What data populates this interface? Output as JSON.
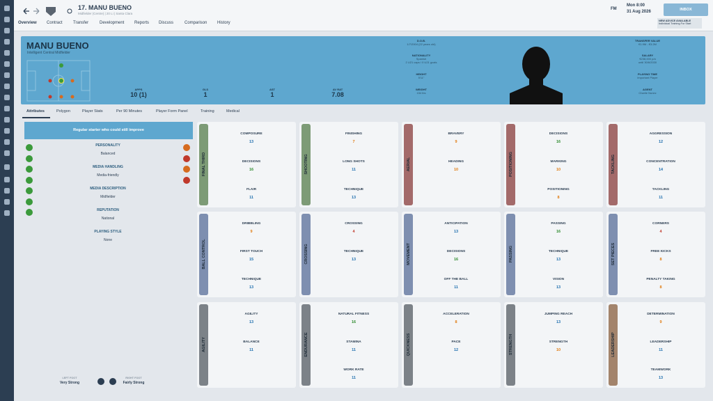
{
  "header": {
    "player": "17. MANU BUENO",
    "subtitle": "Midfielder (Centre) | 20 Li | Santa Clara",
    "day": "Mon 8:00",
    "date": "31 Aug 2026",
    "logo": "FM",
    "inbox": "INBOX",
    "advice_title": "NEW ADVICE AVAILABLE",
    "advice_text": "Individual Training For Start"
  },
  "nav": [
    "Overview",
    "Contract",
    "Transfer",
    "Development",
    "Reports",
    "Discuss",
    "Comparison",
    "History"
  ],
  "banner": {
    "name": "MANU BUENO",
    "role": "Intelligent Central Midfielder",
    "stats": [
      {
        "label": "APPS",
        "value": "10 (1)"
      },
      {
        "label": "GLS",
        "value": "1"
      },
      {
        "label": "AST",
        "value": "1"
      },
      {
        "label": "AV RAT",
        "value": "7.08"
      }
    ],
    "middle": [
      {
        "label": "D.O.B.",
        "value": "1/7/2004 (22 years old)"
      },
      {
        "label": "NATIONALITY",
        "value": "Spanish",
        "extra": "2 U21 caps / 0 U21 goals"
      },
      {
        "label": "HEIGHT",
        "value": "5'11\""
      },
      {
        "label": "WEIGHT",
        "value": "154 lbs"
      }
    ],
    "right": [
      {
        "label": "TRANSFER VALUE",
        "value": "€1.9M - €3.2M"
      },
      {
        "label": "SALARY",
        "value": "€238,000 p/a",
        "extra": "until 30/6/2030"
      },
      {
        "label": "PLAYING TIME",
        "value": "Important Player"
      },
      {
        "label": "AGENT",
        "value": "Charlie Nunez"
      }
    ]
  },
  "tabs": [
    "Attributes",
    "Polygon",
    "Player Stats",
    "Per 90 Minutes",
    "Player Form Panel",
    "Training",
    "Medical"
  ],
  "profile": {
    "summary": "Regular starter who could still improve",
    "items": [
      {
        "label": "PERSONALITY",
        "value": "Balanced"
      },
      {
        "label": "MEDIA HANDLING",
        "value": "Media-friendly"
      },
      {
        "label": "MEDIA DESCRIPTION",
        "value": "Midfielder"
      },
      {
        "label": "REPUTATION",
        "value": "National"
      },
      {
        "label": "PLAYING STYLE",
        "value": "None"
      }
    ],
    "left_foot": {
      "label": "LEFT FOOT",
      "value": "Very Strong"
    },
    "right_foot": {
      "label": "RIGHT FOOT",
      "value": "Fairly Strong"
    }
  },
  "cards": [
    {
      "title": "FINAL THIRD",
      "color": "#7d9b76",
      "attributes": [
        {
          "name": "COMPOSURE",
          "value": 13
        },
        {
          "name": "DECISIONS",
          "value": 16
        },
        {
          "name": "FLAIR",
          "value": 11
        }
      ]
    },
    {
      "title": "SHOOTING",
      "color": "#7d9b76",
      "attributes": [
        {
          "name": "FINISHING",
          "value": 7
        },
        {
          "name": "LONG SHOTS",
          "value": 11
        },
        {
          "name": "TECHNIQUE",
          "value": 13
        }
      ]
    },
    {
      "title": "AERIAL",
      "color": "#a36a6a",
      "attributes": [
        {
          "name": "BRAVERY",
          "value": 9
        },
        {
          "name": "HEADING",
          "value": 10
        }
      ]
    },
    {
      "title": "POSITIONING",
      "color": "#a36a6a",
      "attributes": [
        {
          "name": "DECISIONS",
          "value": 16
        },
        {
          "name": "MARKING",
          "value": 10
        },
        {
          "name": "POSITIONING",
          "value": 8
        }
      ]
    },
    {
      "title": "TACKLING",
      "color": "#a36a6a",
      "attributes": [
        {
          "name": "AGGRESSION",
          "value": 12
        },
        {
          "name": "CONCENTRATION",
          "value": 14
        },
        {
          "name": "TACKLING",
          "value": 11
        }
      ]
    },
    {
      "title": "BALL CONTROL",
      "color": "#7e8fb0",
      "attributes": [
        {
          "name": "DRIBBLING",
          "value": 9
        },
        {
          "name": "FIRST TOUCH",
          "value": 15
        },
        {
          "name": "TECHNIQUE",
          "value": 13
        }
      ]
    },
    {
      "title": "CROSSING",
      "color": "#7e8fb0",
      "attributes": [
        {
          "name": "CROSSING",
          "value": 4
        },
        {
          "name": "TECHNIQUE",
          "value": 13
        }
      ]
    },
    {
      "title": "MOVEMENT",
      "color": "#7e8fb0",
      "attributes": [
        {
          "name": "ANTICIPATION",
          "value": 13
        },
        {
          "name": "DECISIONS",
          "value": 16
        },
        {
          "name": "OFF THE BALL",
          "value": 11
        }
      ]
    },
    {
      "title": "PASSING",
      "color": "#7e8fb0",
      "attributes": [
        {
          "name": "PASSING",
          "value": 16
        },
        {
          "name": "TECHNIQUE",
          "value": 13
        },
        {
          "name": "VISION",
          "value": 13
        }
      ]
    },
    {
      "title": "SET PIECES",
      "color": "#7e8fb0",
      "attributes": [
        {
          "name": "CORNERS",
          "value": 4
        },
        {
          "name": "FREE KICKS",
          "value": 8
        },
        {
          "name": "PENALTY TAKING",
          "value": 8
        }
      ]
    },
    {
      "title": "AGILITY",
      "color": "#7c8288",
      "attributes": [
        {
          "name": "AGILITY",
          "value": 13
        },
        {
          "name": "BALANCE",
          "value": 11
        }
      ]
    },
    {
      "title": "ENDURANCE",
      "color": "#7c8288",
      "attributes": [
        {
          "name": "NATURAL FITNESS",
          "value": 16
        },
        {
          "name": "STAMINA",
          "value": 11
        },
        {
          "name": "WORK RATE",
          "value": 11
        }
      ]
    },
    {
      "title": "QUICKNESS",
      "color": "#7c8288",
      "attributes": [
        {
          "name": "ACCELERATION",
          "value": 8
        },
        {
          "name": "PACE",
          "value": 12
        }
      ]
    },
    {
      "title": "STRENGTH",
      "color": "#7c8288",
      "attributes": [
        {
          "name": "JUMPING REACH",
          "value": 13
        },
        {
          "name": "STRENGTH",
          "value": 10
        }
      ]
    },
    {
      "title": "LEADERSHIP",
      "color": "#a3846c",
      "attributes": [
        {
          "name": "DETERMINATION",
          "value": 9
        },
        {
          "name": "LEADERSHIP",
          "value": 11
        },
        {
          "name": "TEAMWORK",
          "value": 13
        }
      ]
    }
  ]
}
